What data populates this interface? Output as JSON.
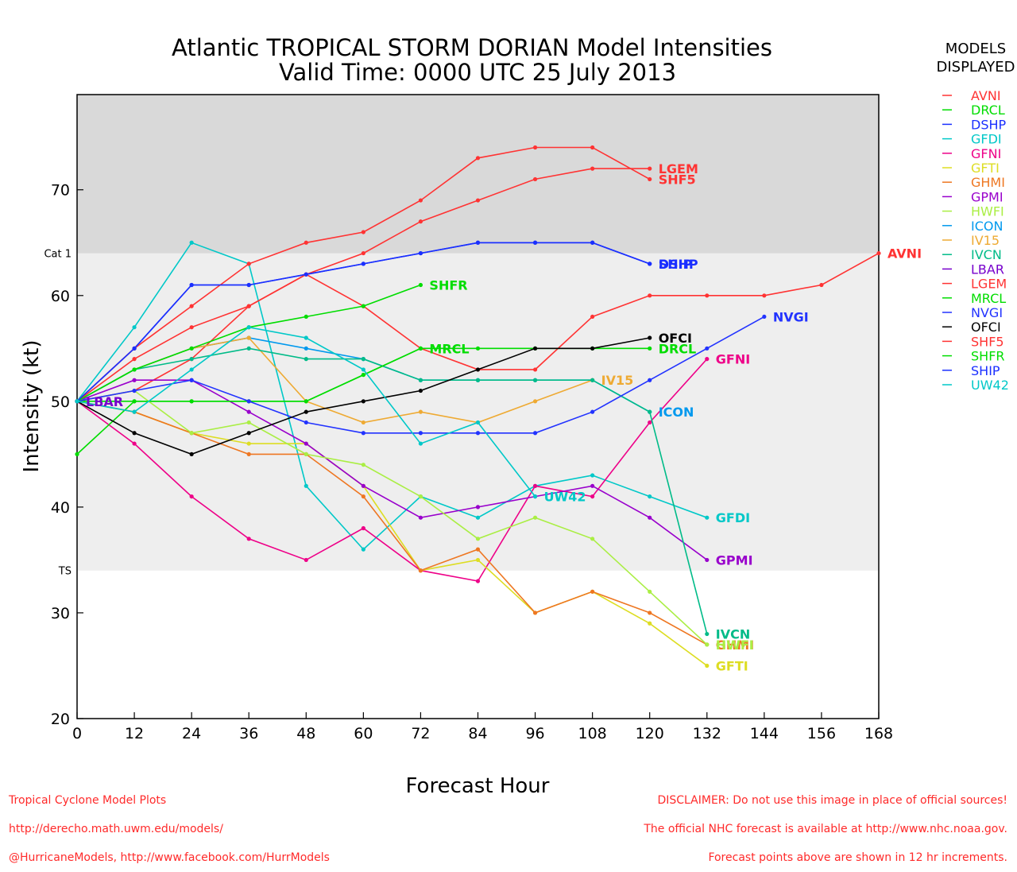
{
  "chart_data": {
    "type": "line",
    "title": [
      "Atlantic TROPICAL STORM DORIAN Model Intensities",
      "Valid Time: 0000 UTC 25 July 2013"
    ],
    "xlabel": "Forecast Hour",
    "ylabel": "Intensity (kt)",
    "xlim": [
      0,
      168
    ],
    "ylim": [
      20,
      79
    ],
    "x_ticks": [
      0,
      12,
      24,
      36,
      48,
      60,
      72,
      84,
      96,
      108,
      120,
      132,
      144,
      156,
      168
    ],
    "y_ticks": [
      20,
      30,
      40,
      50,
      60,
      70
    ],
    "bands": [
      {
        "label": "TS",
        "from": 34,
        "to": 64,
        "color": "#eeeeee"
      },
      {
        "label": "Cat 1",
        "from": 64,
        "to": 79,
        "color": "#d9d9d9"
      }
    ],
    "legend_title": [
      "MODELS",
      "DISPLAYED"
    ],
    "series": [
      {
        "name": "AVNI",
        "color": "#ff3333",
        "x": [
          0,
          12,
          24,
          36,
          48,
          60,
          72,
          84,
          96,
          108,
          120,
          132,
          144,
          156,
          168
        ],
        "values": [
          50,
          51,
          54,
          59,
          62,
          59,
          55,
          53,
          53,
          58,
          60,
          60,
          60,
          61,
          64
        ]
      },
      {
        "name": "DRCL",
        "color": "#00dd00",
        "x": [
          0,
          12,
          24,
          36,
          48,
          60,
          72,
          84,
          96,
          108,
          120
        ],
        "values": [
          50,
          50,
          50,
          50,
          50,
          52.5,
          55,
          55,
          55,
          55,
          55
        ]
      },
      {
        "name": "DSHP",
        "color": "#1a2fff",
        "x": [
          0,
          12,
          24,
          36,
          48,
          60,
          72,
          84,
          96,
          108,
          120
        ],
        "values": [
          50,
          55,
          61,
          61,
          62,
          63,
          64,
          65,
          65,
          65,
          63
        ]
      },
      {
        "name": "GFDI",
        "color": "#00c8c8",
        "x": [
          0,
          12,
          24,
          36,
          48,
          60,
          72,
          84,
          96,
          108,
          120,
          132
        ],
        "values": [
          50,
          57,
          65,
          63,
          42,
          36,
          41,
          39,
          42,
          43,
          41,
          39
        ]
      },
      {
        "name": "GFNI",
        "color": "#ee0088",
        "x": [
          0,
          12,
          24,
          36,
          48,
          60,
          72,
          84,
          96,
          108,
          120,
          132
        ],
        "values": [
          50,
          46,
          41,
          37,
          35,
          38,
          34,
          33,
          42,
          41,
          48,
          54
        ]
      },
      {
        "name": "GFTI",
        "color": "#dddd22",
        "x": [
          0,
          12,
          24,
          36,
          48,
          60,
          72,
          84,
          96,
          108,
          120,
          132
        ],
        "values": [
          50,
          49,
          47,
          46,
          46,
          42,
          34,
          35,
          30,
          32,
          29,
          25
        ]
      },
      {
        "name": "GHMI",
        "color": "#ee7722",
        "x": [
          0,
          12,
          24,
          36,
          48,
          60,
          72,
          84,
          96,
          108,
          120,
          132
        ],
        "values": [
          50,
          49,
          47,
          45,
          45,
          41,
          34,
          36,
          30,
          32,
          30,
          27
        ]
      },
      {
        "name": "GPMI",
        "color": "#9900cc",
        "x": [
          0,
          12,
          24,
          36,
          48,
          60,
          72,
          84,
          96,
          108,
          120,
          132
        ],
        "values": [
          50,
          52,
          52,
          49,
          46,
          42,
          39,
          40,
          41,
          42,
          39,
          35
        ]
      },
      {
        "name": "HWFI",
        "color": "#aaee44",
        "x": [
          0,
          12,
          24,
          36,
          48,
          60,
          72,
          84,
          96,
          108,
          120,
          132
        ],
        "values": [
          50,
          51,
          47,
          48,
          45,
          44,
          41,
          37,
          39,
          37,
          32,
          27
        ]
      },
      {
        "name": "ICON",
        "color": "#0099ee",
        "x": [
          0,
          12,
          24,
          36,
          48,
          60,
          72,
          84,
          96,
          108,
          120
        ],
        "values": [
          50,
          53,
          55,
          56,
          55,
          54,
          52,
          52,
          52,
          52,
          49
        ]
      },
      {
        "name": "IV15",
        "color": "#eeaa33",
        "x": [
          0,
          12,
          24,
          36,
          48,
          60,
          72,
          84,
          96,
          108
        ],
        "values": [
          50,
          53,
          55,
          56,
          50,
          48,
          49,
          48,
          50,
          52
        ]
      },
      {
        "name": "IVCN",
        "color": "#00bb88",
        "x": [
          0,
          12,
          24,
          36,
          48,
          60,
          72,
          84,
          96,
          108,
          120,
          132
        ],
        "values": [
          50,
          53,
          54,
          55,
          54,
          54,
          52,
          52,
          52,
          52,
          49,
          28
        ]
      },
      {
        "name": "LBAR",
        "color": "#7700cc",
        "x": [
          0
        ],
        "values": [
          50
        ]
      },
      {
        "name": "LGEM",
        "color": "#ff3333",
        "x": [
          0,
          12,
          24,
          36,
          48,
          60,
          72,
          84,
          96,
          108,
          120
        ],
        "values": [
          50,
          54,
          57,
          59,
          62,
          64,
          67,
          69,
          71,
          72,
          72
        ]
      },
      {
        "name": "MRCL",
        "color": "#00dd00",
        "x": [
          0,
          12,
          24,
          36,
          48,
          60,
          72
        ],
        "values": [
          45,
          50,
          50,
          50,
          50,
          52.5,
          55
        ]
      },
      {
        "name": "NVGI",
        "color": "#2233ff",
        "x": [
          0,
          12,
          24,
          36,
          48,
          60,
          72,
          84,
          96,
          108,
          120,
          132,
          144
        ],
        "values": [
          50,
          51,
          52,
          50,
          48,
          47,
          47,
          47,
          47,
          49,
          52,
          55,
          58
        ]
      },
      {
        "name": "OFCI",
        "color": "#000000",
        "x": [
          0,
          12,
          24,
          36,
          48,
          60,
          72,
          84,
          96,
          108,
          120
        ],
        "values": [
          50,
          47,
          45,
          47,
          49,
          50,
          51,
          53,
          55,
          55,
          56
        ]
      },
      {
        "name": "SHF5",
        "color": "#ff3333",
        "x": [
          0,
          12,
          24,
          36,
          48,
          60,
          72,
          84,
          96,
          108,
          120
        ],
        "values": [
          50,
          55,
          59,
          63,
          65,
          66,
          69,
          73,
          74,
          74,
          71
        ]
      },
      {
        "name": "SHFR",
        "color": "#00dd00",
        "x": [
          0,
          12,
          24,
          36,
          48,
          60,
          72
        ],
        "values": [
          50,
          53,
          55,
          57,
          58,
          59,
          61
        ]
      },
      {
        "name": "SHIP",
        "color": "#1a2fff",
        "x": [
          0,
          12,
          24,
          36,
          48,
          60,
          72,
          84,
          96,
          108,
          120
        ],
        "values": [
          50,
          55,
          61,
          61,
          62,
          63,
          64,
          65,
          65,
          65,
          63
        ]
      },
      {
        "name": "UW42",
        "color": "#00c8c8",
        "x": [
          0,
          12,
          24,
          36,
          48,
          60,
          72,
          84,
          96
        ],
        "values": [
          50,
          49,
          53,
          57,
          56,
          53,
          46,
          48,
          41
        ]
      }
    ]
  },
  "footer": {
    "left": [
      "Tropical Cyclone Model Plots",
      "http://derecho.math.uwm.edu/models/",
      "@HurricaneModels, http://www.facebook.com/HurrModels"
    ],
    "right": [
      "DISCLAIMER: Do not use this image in place of official sources!",
      "The official NHC forecast is available at http://www.nhc.noaa.gov.",
      "Forecast points above are shown in 12 hr increments."
    ]
  }
}
